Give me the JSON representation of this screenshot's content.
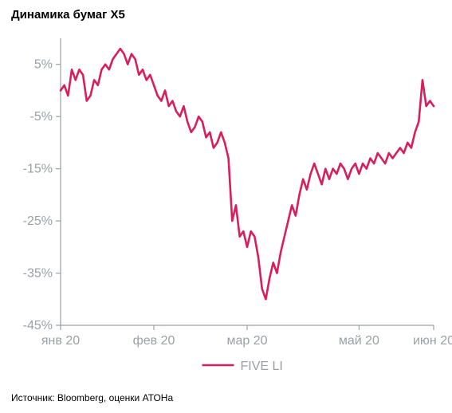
{
  "title": "Динамика бумаг X5",
  "source": "Источник: Bloomberg, оценки АТОНа",
  "chart": {
    "type": "line",
    "series_name": "FIVE LI",
    "series_color": "#d81e5b",
    "line_width": 2.6,
    "background_color": "#ffffff",
    "axis_color": "#9aa0a6",
    "axis_label_color": "#9aa0a6",
    "label_fontsize": 16,
    "legend_fontsize": 16,
    "title_fontsize": 15,
    "title_color": "#000000",
    "source_fontsize": 12,
    "source_color": "#000000",
    "ylim": [
      -45,
      10
    ],
    "ytick_step": 10,
    "ytick_start": -45,
    "ytick_labels": [
      "5%",
      "-5%",
      "-15%",
      "-25%",
      "-35%",
      "-45%"
    ],
    "ytick_values": [
      5,
      -5,
      -15,
      -25,
      -35,
      -45
    ],
    "xtick_labels": [
      "янв 20",
      "фев 20",
      "мар 20",
      "май 20",
      "июн 20"
    ],
    "xtick_positions": [
      0,
      25,
      50,
      80,
      100
    ],
    "xlim": [
      0,
      100
    ],
    "legend_position": "bottom-center",
    "legend_line_length": 40,
    "values": [
      {
        "x": 0,
        "y": 0
      },
      {
        "x": 1,
        "y": 1
      },
      {
        "x": 2,
        "y": -1
      },
      {
        "x": 3,
        "y": 4
      },
      {
        "x": 4,
        "y": 2
      },
      {
        "x": 5,
        "y": 4
      },
      {
        "x": 6,
        "y": 3
      },
      {
        "x": 7,
        "y": -2
      },
      {
        "x": 8,
        "y": -1
      },
      {
        "x": 9,
        "y": 2
      },
      {
        "x": 10,
        "y": 1
      },
      {
        "x": 11,
        "y": 4
      },
      {
        "x": 12,
        "y": 5
      },
      {
        "x": 13,
        "y": 4
      },
      {
        "x": 14,
        "y": 6
      },
      {
        "x": 15,
        "y": 7
      },
      {
        "x": 16,
        "y": 8
      },
      {
        "x": 17,
        "y": 7
      },
      {
        "x": 18,
        "y": 5
      },
      {
        "x": 19,
        "y": 7
      },
      {
        "x": 20,
        "y": 6
      },
      {
        "x": 21,
        "y": 3
      },
      {
        "x": 22,
        "y": 4
      },
      {
        "x": 23,
        "y": 2
      },
      {
        "x": 24,
        "y": 3
      },
      {
        "x": 25,
        "y": 1
      },
      {
        "x": 26,
        "y": -1
      },
      {
        "x": 27,
        "y": -2
      },
      {
        "x": 28,
        "y": 0
      },
      {
        "x": 29,
        "y": -3
      },
      {
        "x": 30,
        "y": -2
      },
      {
        "x": 31,
        "y": -4
      },
      {
        "x": 32,
        "y": -5
      },
      {
        "x": 33,
        "y": -3
      },
      {
        "x": 34,
        "y": -6
      },
      {
        "x": 35,
        "y": -8
      },
      {
        "x": 36,
        "y": -7
      },
      {
        "x": 37,
        "y": -5
      },
      {
        "x": 38,
        "y": -6
      },
      {
        "x": 39,
        "y": -9
      },
      {
        "x": 40,
        "y": -8
      },
      {
        "x": 41,
        "y": -11
      },
      {
        "x": 42,
        "y": -10
      },
      {
        "x": 43,
        "y": -8
      },
      {
        "x": 44,
        "y": -10
      },
      {
        "x": 45,
        "y": -13
      },
      {
        "x": 46,
        "y": -25
      },
      {
        "x": 47,
        "y": -22
      },
      {
        "x": 48,
        "y": -28
      },
      {
        "x": 49,
        "y": -27
      },
      {
        "x": 50,
        "y": -30
      },
      {
        "x": 51,
        "y": -27
      },
      {
        "x": 52,
        "y": -28
      },
      {
        "x": 53,
        "y": -32
      },
      {
        "x": 54,
        "y": -38
      },
      {
        "x": 55,
        "y": -40
      },
      {
        "x": 56,
        "y": -36
      },
      {
        "x": 57,
        "y": -33
      },
      {
        "x": 58,
        "y": -35
      },
      {
        "x": 59,
        "y": -31
      },
      {
        "x": 60,
        "y": -28
      },
      {
        "x": 61,
        "y": -25
      },
      {
        "x": 62,
        "y": -22
      },
      {
        "x": 63,
        "y": -24
      },
      {
        "x": 64,
        "y": -20
      },
      {
        "x": 65,
        "y": -17
      },
      {
        "x": 66,
        "y": -19
      },
      {
        "x": 67,
        "y": -16
      },
      {
        "x": 68,
        "y": -14
      },
      {
        "x": 69,
        "y": -16
      },
      {
        "x": 70,
        "y": -18
      },
      {
        "x": 71,
        "y": -15
      },
      {
        "x": 72,
        "y": -17
      },
      {
        "x": 73,
        "y": -15
      },
      {
        "x": 74,
        "y": -16
      },
      {
        "x": 75,
        "y": -14
      },
      {
        "x": 76,
        "y": -15
      },
      {
        "x": 77,
        "y": -17
      },
      {
        "x": 78,
        "y": -15
      },
      {
        "x": 79,
        "y": -14
      },
      {
        "x": 80,
        "y": -16
      },
      {
        "x": 81,
        "y": -14
      },
      {
        "x": 82,
        "y": -15
      },
      {
        "x": 83,
        "y": -13
      },
      {
        "x": 84,
        "y": -14
      },
      {
        "x": 85,
        "y": -12
      },
      {
        "x": 86,
        "y": -13
      },
      {
        "x": 87,
        "y": -14
      },
      {
        "x": 88,
        "y": -12
      },
      {
        "x": 89,
        "y": -13
      },
      {
        "x": 90,
        "y": -12
      },
      {
        "x": 91,
        "y": -11
      },
      {
        "x": 92,
        "y": -12
      },
      {
        "x": 93,
        "y": -10
      },
      {
        "x": 94,
        "y": -11
      },
      {
        "x": 95,
        "y": -8
      },
      {
        "x": 96,
        "y": -6
      },
      {
        "x": 97,
        "y": 2
      },
      {
        "x": 98,
        "y": -3
      },
      {
        "x": 99,
        "y": -2
      },
      {
        "x": 100,
        "y": -3
      }
    ]
  }
}
